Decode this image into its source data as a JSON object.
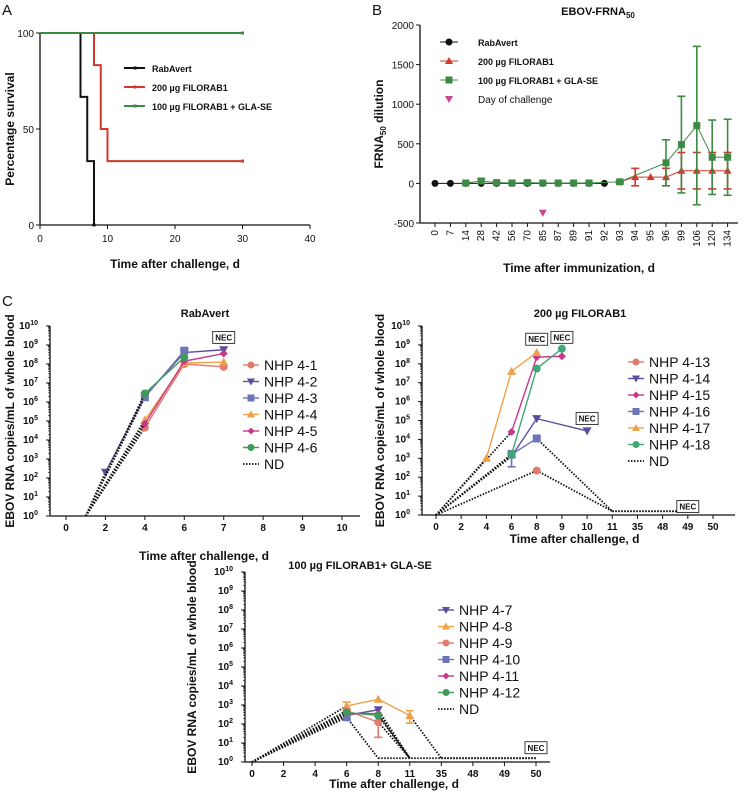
{
  "chart_data": [
    {
      "id": "A",
      "type": "line",
      "subtype": "kaplan-meier-step",
      "panel_label": "A",
      "title": "",
      "xlabel": "Time after challenge, d",
      "ylabel": "Percentage survival",
      "xlim": [
        0,
        40
      ],
      "ylim": [
        0,
        100
      ],
      "xticks": [
        0,
        10,
        20,
        30,
        40
      ],
      "yticks": [
        0,
        50,
        100
      ],
      "legend": "upper-middle",
      "series": [
        {
          "name": "RabAvert",
          "color": "#111111",
          "x": [
            0,
            6,
            6,
            7,
            7,
            8,
            8
          ],
          "y": [
            100,
            100,
            66.7,
            66.7,
            33.3,
            33.3,
            0
          ]
        },
        {
          "name": "200 µg FILORAB1",
          "color": "#d0392b",
          "x": [
            0,
            8,
            8,
            9,
            9,
            10,
            10,
            30
          ],
          "y": [
            100,
            100,
            83.3,
            83.3,
            50,
            50,
            33.3,
            33.3
          ]
        },
        {
          "name": "100 µg FILORAB1 + GLA-SE",
          "color": "#3d8a45",
          "x": [
            0,
            30
          ],
          "y": [
            100,
            100
          ]
        }
      ]
    },
    {
      "id": "B",
      "type": "line",
      "panel_label": "B",
      "title": "EBOV-FRNA",
      "title_sub": "50",
      "xlabel": "Time after immunization, d",
      "ylabel": "FRNA",
      "ylabel_sub": "50",
      "ylabel_suffix": " dilution",
      "categories": [
        "0",
        "7",
        "14",
        "28",
        "42",
        "56",
        "70",
        "85",
        "87",
        "89",
        "91",
        "92",
        "93",
        "94",
        "95",
        "96",
        "99",
        "106",
        "120",
        "134"
      ],
      "ylim": [
        -500,
        2000
      ],
      "yticks": [
        -500,
        0,
        500,
        1000,
        1500,
        2000
      ],
      "legend": "upper-left",
      "series": [
        {
          "name": "RabAvert",
          "color": "#111111",
          "marker": "circle",
          "values": [
            0,
            0,
            0,
            0,
            0,
            0,
            0,
            0,
            0,
            0,
            0,
            0,
            null,
            null,
            null,
            null,
            null,
            null,
            null,
            null
          ],
          "err": [
            0,
            0,
            0,
            0,
            0,
            0,
            0,
            0,
            0,
            0,
            0,
            0,
            null,
            null,
            null,
            null,
            null,
            null,
            null,
            null
          ]
        },
        {
          "name": "200 µg FILORAB1",
          "color": "#d0392b",
          "marker": "triangle",
          "values": [
            null,
            null,
            null,
            null,
            null,
            null,
            null,
            null,
            null,
            null,
            null,
            null,
            20,
            80,
            80,
            80,
            160,
            160,
            160,
            160
          ],
          "err": [
            null,
            null,
            null,
            null,
            null,
            null,
            null,
            null,
            null,
            null,
            null,
            null,
            10,
            110,
            0,
            110,
            230,
            230,
            230,
            230
          ]
        },
        {
          "name": "100 µg FILORAB1 + GLA-SE",
          "color": "#3d8a45",
          "marker": "square",
          "values": [
            null,
            null,
            5,
            30,
            10,
            5,
            10,
            5,
            5,
            5,
            5,
            null,
            20,
            null,
            null,
            260,
            490,
            730,
            330,
            330
          ],
          "err": [
            null,
            null,
            10,
            30,
            10,
            5,
            20,
            5,
            5,
            5,
            5,
            null,
            20,
            null,
            null,
            290,
            610,
            1000,
            470,
            480
          ]
        },
        {
          "name": "Day of challenge",
          "color": "#c9478e",
          "marker": "triangle-down",
          "marker_only": true,
          "values": [
            null,
            null,
            null,
            null,
            null,
            null,
            null,
            -370,
            null,
            null,
            null,
            null,
            null,
            null,
            null,
            null,
            null,
            null,
            null,
            null
          ]
        }
      ]
    },
    {
      "id": "C1",
      "type": "line",
      "panel_label": "C",
      "title": "RabAvert",
      "xlabel": "Time after challenge, d",
      "ylabel": "EBOV RNA copies/mL of whole blood",
      "yscale": "log",
      "ylim_exp": [
        0,
        10
      ],
      "categories": [
        "0",
        "2",
        "4",
        "6",
        "7",
        "8",
        "9",
        "10"
      ],
      "legend": "right",
      "nec_labels": [
        {
          "text": "NEC",
          "at_category": "7",
          "at_exp": 9.4
        }
      ],
      "nd_origin": {
        "category_offset": 0.5,
        "exp": 0
      },
      "series": [
        {
          "name": "NHP 4-1",
          "color": "#e07b6e",
          "marker": "circle",
          "points": [
            [
              "4",
              4.65
            ],
            [
              "6",
              8.0
            ],
            [
              "7",
              7.85
            ]
          ],
          "nd_from": "4"
        },
        {
          "name": "NHP 4-2",
          "color": "#5b4ea0",
          "marker": "triangle-down",
          "points": [
            [
              "2",
              2.3
            ],
            [
              "4",
              6.3
            ],
            [
              "6",
              8.6
            ],
            [
              "7",
              8.75
            ]
          ],
          "nd_from": "2"
        },
        {
          "name": "NHP 4-3",
          "color": "#6e74b8",
          "marker": "square",
          "points": [
            [
              "4",
              6.25
            ],
            [
              "6",
              8.7
            ]
          ],
          "nd_from": "4"
        },
        {
          "name": "NHP 4-4",
          "color": "#eda14a",
          "marker": "triangle",
          "points": [
            [
              "4",
              5.05
            ],
            [
              "6",
              8.05
            ],
            [
              "7",
              8.1
            ]
          ],
          "nd_from": "4"
        },
        {
          "name": "NHP 4-5",
          "color": "#c8388a",
          "marker": "diamond",
          "points": [
            [
              "4",
              4.85
            ],
            [
              "6",
              8.15
            ],
            [
              "7",
              8.55
            ]
          ],
          "nd_from": "4"
        },
        {
          "name": "NHP 4-6",
          "color": "#3f9a5a",
          "marker": "circle",
          "points": [
            [
              "4",
              6.45
            ],
            [
              "6",
              8.35
            ]
          ],
          "nd_from": "4"
        }
      ],
      "nd_label": "ND"
    },
    {
      "id": "C2",
      "type": "line",
      "panel_label": "",
      "title": "200 µg FILORAB1",
      "xlabel": "Time after challenge, d",
      "ylabel": "EBOV RNA copies/mL of whole blood",
      "yscale": "log",
      "ylim_exp": [
        0,
        10
      ],
      "categories": [
        "0",
        "2",
        "4",
        "6",
        "8",
        "9",
        "10",
        "11",
        "35",
        "48",
        "49",
        "50"
      ],
      "legend": "right",
      "nec_labels": [
        {
          "text": "NEC",
          "at_category": "8",
          "at_exp": 9.3
        },
        {
          "text": "NEC",
          "at_category": "9",
          "at_exp": 9.4
        },
        {
          "text": "NEC",
          "at_category": "10",
          "at_exp": 5.1
        },
        {
          "text": "NEC",
          "at_category": "49",
          "at_exp": 0.45
        }
      ],
      "series": [
        {
          "name": "NHP 4-13",
          "color": "#e07b6e",
          "marker": "circle",
          "points": [
            [
              "8",
              2.35
            ]
          ],
          "nd_from": "0",
          "nd_after": [
            "8",
            "11",
            "49"
          ]
        },
        {
          "name": "NHP 4-14",
          "color": "#5b4ea0",
          "marker": "triangle-down",
          "points": [
            [
              "6",
              3.1
            ],
            [
              "8",
              5.1
            ],
            [
              "10",
              4.45
            ]
          ],
          "nd_from": "0"
        },
        {
          "name": "NHP 4-15",
          "color": "#c8388a",
          "marker": "diamond",
          "points": [
            [
              "6",
              4.4
            ],
            [
              "8",
              8.35
            ],
            [
              "9",
              8.4
            ]
          ],
          "nd_from": "0"
        },
        {
          "name": "NHP 4-16",
          "color": "#6e74b8",
          "marker": "square",
          "points": [
            [
              "6",
              3.2
            ],
            [
              "8",
              4.05
            ]
          ],
          "nd_from": "0",
          "nd_after": [
            "8",
            "11",
            "49"
          ],
          "err_at": {
            "6": [
              2.55,
              3.4
            ]
          }
        },
        {
          "name": "NHP 4-17",
          "color": "#eda14a",
          "marker": "triangle",
          "points": [
            [
              "4",
              3.0
            ],
            [
              "6",
              7.6
            ],
            [
              "8",
              8.6
            ]
          ],
          "nd_from": "0"
        },
        {
          "name": "NHP 4-18",
          "color": "#3fa874",
          "marker": "circle",
          "points": [
            [
              "6",
              3.2
            ],
            [
              "8",
              7.75
            ],
            [
              "9",
              8.8
            ]
          ],
          "nd_from": "0"
        }
      ],
      "nd_label": "ND"
    },
    {
      "id": "C3",
      "type": "line",
      "panel_label": "",
      "title": "100 µg FILORAB1+ GLA-SE",
      "xlabel": "Time after challenge, d",
      "ylabel": "EBOV RNA copies/mL of whole blood",
      "yscale": "log",
      "ylim_exp": [
        0,
        10
      ],
      "categories": [
        "0",
        "2",
        "4",
        "6",
        "8",
        "11",
        "35",
        "48",
        "49",
        "50"
      ],
      "legend": "right",
      "nec_labels": [
        {
          "text": "NEC",
          "at_category": "50",
          "at_exp": 0.75
        }
      ],
      "series": [
        {
          "name": "NHP 4-7",
          "color": "#5b4ea0",
          "marker": "triangle-down",
          "points": [
            [
              "6",
              2.45
            ],
            [
              "8",
              2.75
            ]
          ],
          "nd_from": "0",
          "nd_after": [
            "8",
            "11"
          ]
        },
        {
          "name": "NHP 4-8",
          "color": "#eda14a",
          "marker": "triangle",
          "points": [
            [
              "6",
              2.95
            ],
            [
              "8",
              3.3
            ],
            [
              "11",
              2.45
            ]
          ],
          "nd_from": "0",
          "nd_after": [
            "11",
            "35",
            "50"
          ],
          "err_at": {
            "6": [
              2.7,
              3.15
            ],
            "11": [
              2.05,
              2.7
            ]
          }
        },
        {
          "name": "NHP 4-9",
          "color": "#e07b6e",
          "marker": "circle",
          "points": [
            [
              "6",
              2.7
            ],
            [
              "8",
              2.1
            ]
          ],
          "nd_from": "0",
          "nd_after": [
            "8",
            "11"
          ],
          "err_at": {
            "8": [
              1.3,
              2.5
            ]
          }
        },
        {
          "name": "NHP 4-10",
          "color": "#6e74b8",
          "marker": "square",
          "points": [
            [
              "6",
              2.35
            ]
          ],
          "nd_from": "0",
          "nd_after": [
            "6",
            "8",
            "50"
          ],
          "err_at": {
            "6": [
              2.2,
              2.5
            ]
          }
        },
        {
          "name": "NHP 4-11",
          "color": "#c8388a",
          "marker": "diamond",
          "points": [
            [
              "6",
              2.55
            ],
            [
              "8",
              2.55
            ]
          ],
          "nd_from": "0",
          "nd_after": [
            "8",
            "11"
          ]
        },
        {
          "name": "NHP 4-12",
          "color": "#3f9a5a",
          "marker": "circle",
          "points": [
            [
              "6",
              2.6
            ],
            [
              "8",
              2.45
            ]
          ],
          "nd_from": "0",
          "nd_after": [
            "8",
            "11"
          ]
        }
      ],
      "nd_label": "ND"
    }
  ]
}
